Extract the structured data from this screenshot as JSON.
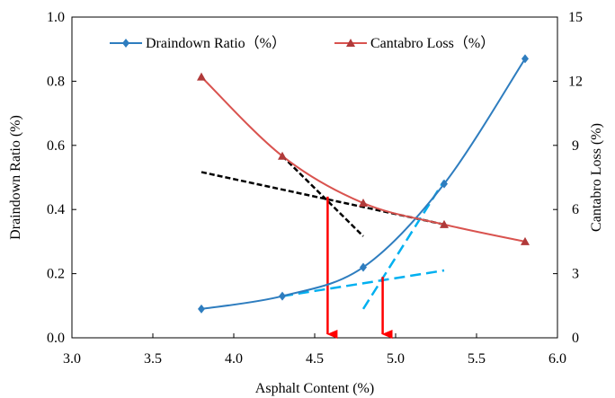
{
  "chart_data": {
    "type": "line",
    "xlabel": "Asphalt Content (%)",
    "ylabel": "Draindown Ratio (%)",
    "y2label": "Cantabro Loss (%)",
    "xlim": [
      3.0,
      6.0
    ],
    "ylim": [
      0.0,
      1.0
    ],
    "y2lim": [
      0,
      15
    ],
    "x_ticks": [
      "3.0",
      "3.5",
      "4.0",
      "4.5",
      "5.0",
      "5.5",
      "6.0"
    ],
    "y_ticks": [
      "0.0",
      "0.2",
      "0.4",
      "0.6",
      "0.8",
      "1.0"
    ],
    "y2_ticks": [
      "0",
      "3",
      "6",
      "9",
      "12",
      "15"
    ],
    "grid": false,
    "legend_position": "top",
    "series": [
      {
        "name": "Draindown Ratio（%）",
        "axis": "left",
        "marker": "diamond",
        "color": "#2e7dbf",
        "x": [
          3.8,
          4.3,
          4.8,
          5.3,
          5.8
        ],
        "values": [
          0.09,
          0.13,
          0.22,
          0.48,
          0.87
        ]
      },
      {
        "name": "Cantabro Loss（%）",
        "axis": "right",
        "marker": "triangle",
        "color": "#d9534f",
        "x": [
          3.8,
          4.3,
          4.8,
          5.3,
          5.8
        ],
        "values": [
          12.2,
          8.5,
          6.3,
          5.3,
          4.5
        ]
      }
    ],
    "tangent_lines": [
      {
        "color": "#000000",
        "style": "dashed",
        "axis": "right",
        "from": [
          3.8,
          7.75
        ],
        "to": [
          5.3,
          5.3
        ]
      },
      {
        "color": "#000000",
        "style": "dashed",
        "axis": "right",
        "from": [
          4.3,
          8.5
        ],
        "to": [
          4.8,
          4.75
        ]
      },
      {
        "color": "#00b0f0",
        "style": "dashed",
        "axis": "left",
        "from": [
          4.3,
          0.13
        ],
        "to": [
          5.3,
          0.21
        ]
      },
      {
        "color": "#00b0f0",
        "style": "dashed",
        "axis": "left",
        "from": [
          4.8,
          0.09
        ],
        "to": [
          5.3,
          0.49
        ]
      }
    ],
    "arrows": [
      {
        "color": "#ff0000",
        "x": 4.58,
        "from_y": 0.44,
        "to_y": 0.0
      },
      {
        "color": "#ff0000",
        "x": 4.92,
        "from_y": 0.19,
        "to_y": 0.0
      }
    ]
  }
}
